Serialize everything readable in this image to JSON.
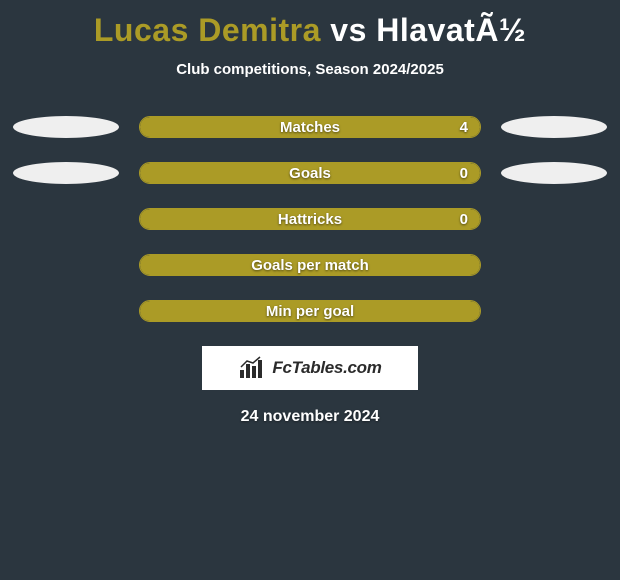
{
  "colors": {
    "background": "#2b363f",
    "accent": "#ab9b26",
    "ellipse_left": "#efefef",
    "ellipse_right": "#efefef",
    "text": "#ffffff",
    "logo_bg": "#ffffff",
    "logo_text": "#2b2b2b"
  },
  "title": {
    "player1": "Lucas Demitra",
    "vs": "vs",
    "player2": "HlavatÃ½"
  },
  "subtitle": "Club competitions, Season 2024/2025",
  "rows": [
    {
      "label": "Matches",
      "value": "4",
      "fill_pct": 100,
      "left_ellipse": true,
      "right_ellipse": true
    },
    {
      "label": "Goals",
      "value": "0",
      "fill_pct": 100,
      "left_ellipse": true,
      "right_ellipse": true
    },
    {
      "label": "Hattricks",
      "value": "0",
      "fill_pct": 100,
      "left_ellipse": false,
      "right_ellipse": false
    },
    {
      "label": "Goals per match",
      "value": "",
      "fill_pct": 100,
      "left_ellipse": false,
      "right_ellipse": false
    },
    {
      "label": "Min per goal",
      "value": "",
      "fill_pct": 100,
      "left_ellipse": false,
      "right_ellipse": false
    }
  ],
  "logo": {
    "text": "FcTables.com"
  },
  "date": "24 november 2024"
}
